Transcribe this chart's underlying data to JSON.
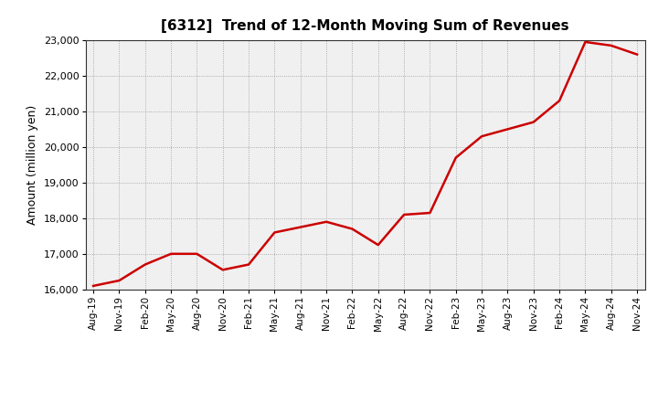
{
  "title": "[6312]  Trend of 12-Month Moving Sum of Revenues",
  "ylabel": "Amount (million yen)",
  "line_color": "#cc0000",
  "background_color": "#ffffff",
  "plot_bg_color": "#f0f0f0",
  "grid_color": "#999999",
  "ylim": [
    16000,
    23000
  ],
  "yticks": [
    16000,
    17000,
    18000,
    19000,
    20000,
    21000,
    22000,
    23000
  ],
  "labels": [
    "Aug-19",
    "Nov-19",
    "Feb-20",
    "May-20",
    "Aug-20",
    "Nov-20",
    "Feb-21",
    "May-21",
    "Aug-21",
    "Nov-21",
    "Feb-22",
    "May-22",
    "Aug-22",
    "Nov-22",
    "Feb-23",
    "May-23",
    "Aug-23",
    "Nov-23",
    "Feb-24",
    "May-24",
    "Aug-24",
    "Nov-24"
  ],
  "values": [
    16100,
    16250,
    16700,
    17000,
    17000,
    16550,
    16700,
    17600,
    17750,
    17900,
    17700,
    17250,
    18100,
    18150,
    19700,
    20300,
    20500,
    20700,
    21300,
    22950,
    22850,
    22600
  ]
}
